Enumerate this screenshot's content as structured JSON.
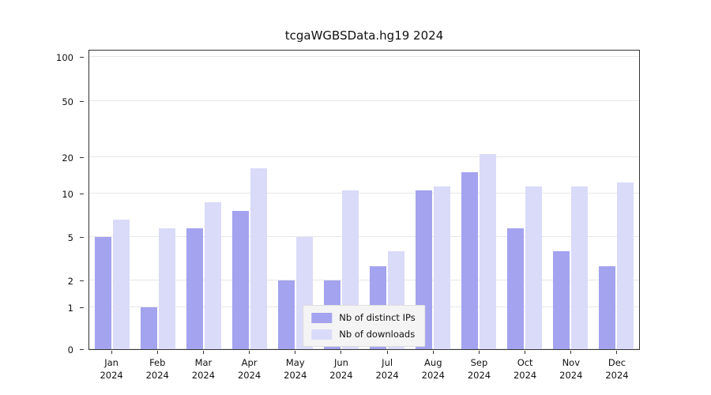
{
  "title": "tcgaWGBSData.hg19 2024",
  "legend": {
    "items": [
      {
        "label": "Nb of distinct IPs",
        "color": "#a3a3ef"
      },
      {
        "label": "Nb of downloads",
        "color": "#dadaf9"
      }
    ]
  },
  "chart_data": {
    "type": "bar",
    "title": "tcgaWGBSData.hg19 2024",
    "categories": [
      "Jan",
      "Feb",
      "Mar",
      "Apr",
      "May",
      "Jun",
      "Jul",
      "Aug",
      "Sep",
      "Oct",
      "Nov",
      "Dec"
    ],
    "year": "2024",
    "series": [
      {
        "name": "Nb of distinct IPs",
        "color": "#a3a3ef",
        "values": [
          5,
          1,
          6,
          8,
          2,
          2,
          3,
          11,
          16,
          6,
          4,
          3
        ]
      },
      {
        "name": "Nb of downloads",
        "color": "#dadaf9",
        "values": [
          7,
          6,
          9,
          17,
          5,
          11,
          4,
          12,
          22,
          12,
          12,
          13
        ]
      }
    ],
    "yticks": [
      0,
      1,
      2,
      5,
      10,
      20,
      50,
      100
    ],
    "ylim": [
      0,
      100
    ],
    "scale": "log-like",
    "xlabel": "",
    "ylabel": "",
    "grid": true,
    "legend_position": "bottom-center"
  }
}
